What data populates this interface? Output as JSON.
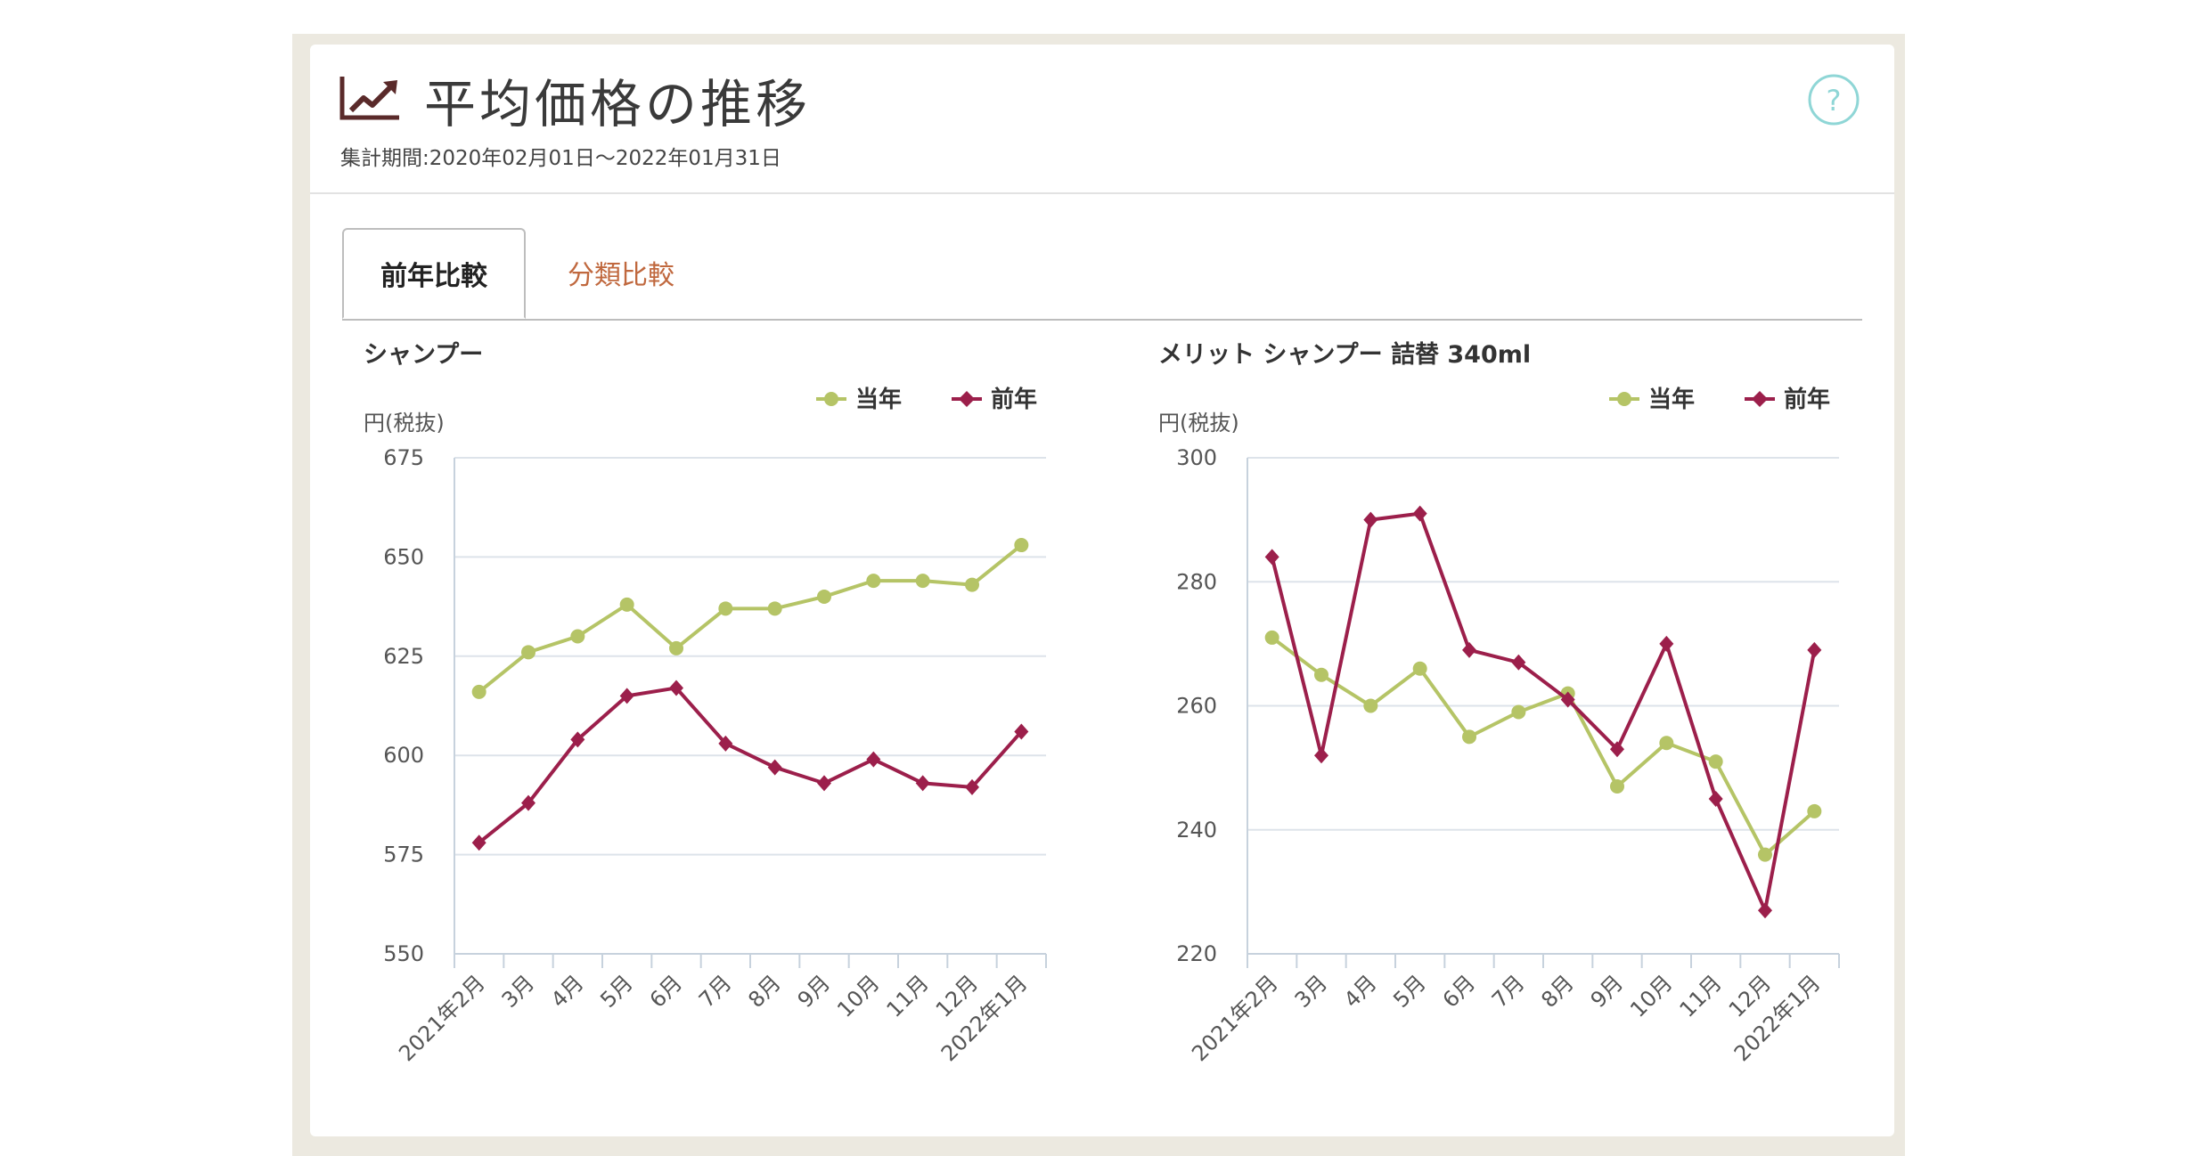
{
  "header": {
    "title": "平均価格の推移",
    "period": "集計期間:2020年02月01日～2022年01月31日",
    "help_label": "?"
  },
  "tabs": [
    {
      "label": "前年比較",
      "active": true
    },
    {
      "label": "分類比較",
      "active": false
    }
  ],
  "colors": {
    "current": "#b5c466",
    "previous": "#9c1f4b",
    "grid": "#dde3ea",
    "axis": "#c7d2dd"
  },
  "chart_data": [
    {
      "type": "line",
      "title": "シャンプー",
      "ylabel": "円(税抜)",
      "ylim": [
        550,
        675
      ],
      "yticks": [
        550,
        575,
        600,
        625,
        650,
        675
      ],
      "categories": [
        "2021年2月",
        "3月",
        "4月",
        "5月",
        "6月",
        "7月",
        "8月",
        "9月",
        "10月",
        "11月",
        "12月",
        "2022年1月"
      ],
      "legend": [
        "当年",
        "前年"
      ],
      "series": [
        {
          "name": "当年",
          "values": [
            616,
            626,
            630,
            638,
            627,
            637,
            637,
            640,
            644,
            644,
            643,
            653
          ]
        },
        {
          "name": "前年",
          "values": [
            578,
            588,
            604,
            615,
            617,
            603,
            597,
            593,
            599,
            593,
            592,
            606
          ]
        }
      ]
    },
    {
      "type": "line",
      "title": "メリット シャンプー 詰替 340ml",
      "ylabel": "円(税抜)",
      "ylim": [
        220,
        300
      ],
      "yticks": [
        220,
        240,
        260,
        280,
        300
      ],
      "categories": [
        "2021年2月",
        "3月",
        "4月",
        "5月",
        "6月",
        "7月",
        "8月",
        "9月",
        "10月",
        "11月",
        "12月",
        "2022年1月"
      ],
      "legend": [
        "当年",
        "前年"
      ],
      "series": [
        {
          "name": "当年",
          "values": [
            271,
            265,
            260,
            266,
            255,
            259,
            262,
            247,
            254,
            251,
            236,
            243
          ]
        },
        {
          "name": "前年",
          "values": [
            284,
            252,
            290,
            291,
            269,
            267,
            261,
            253,
            270,
            245,
            227,
            269
          ]
        }
      ]
    }
  ]
}
